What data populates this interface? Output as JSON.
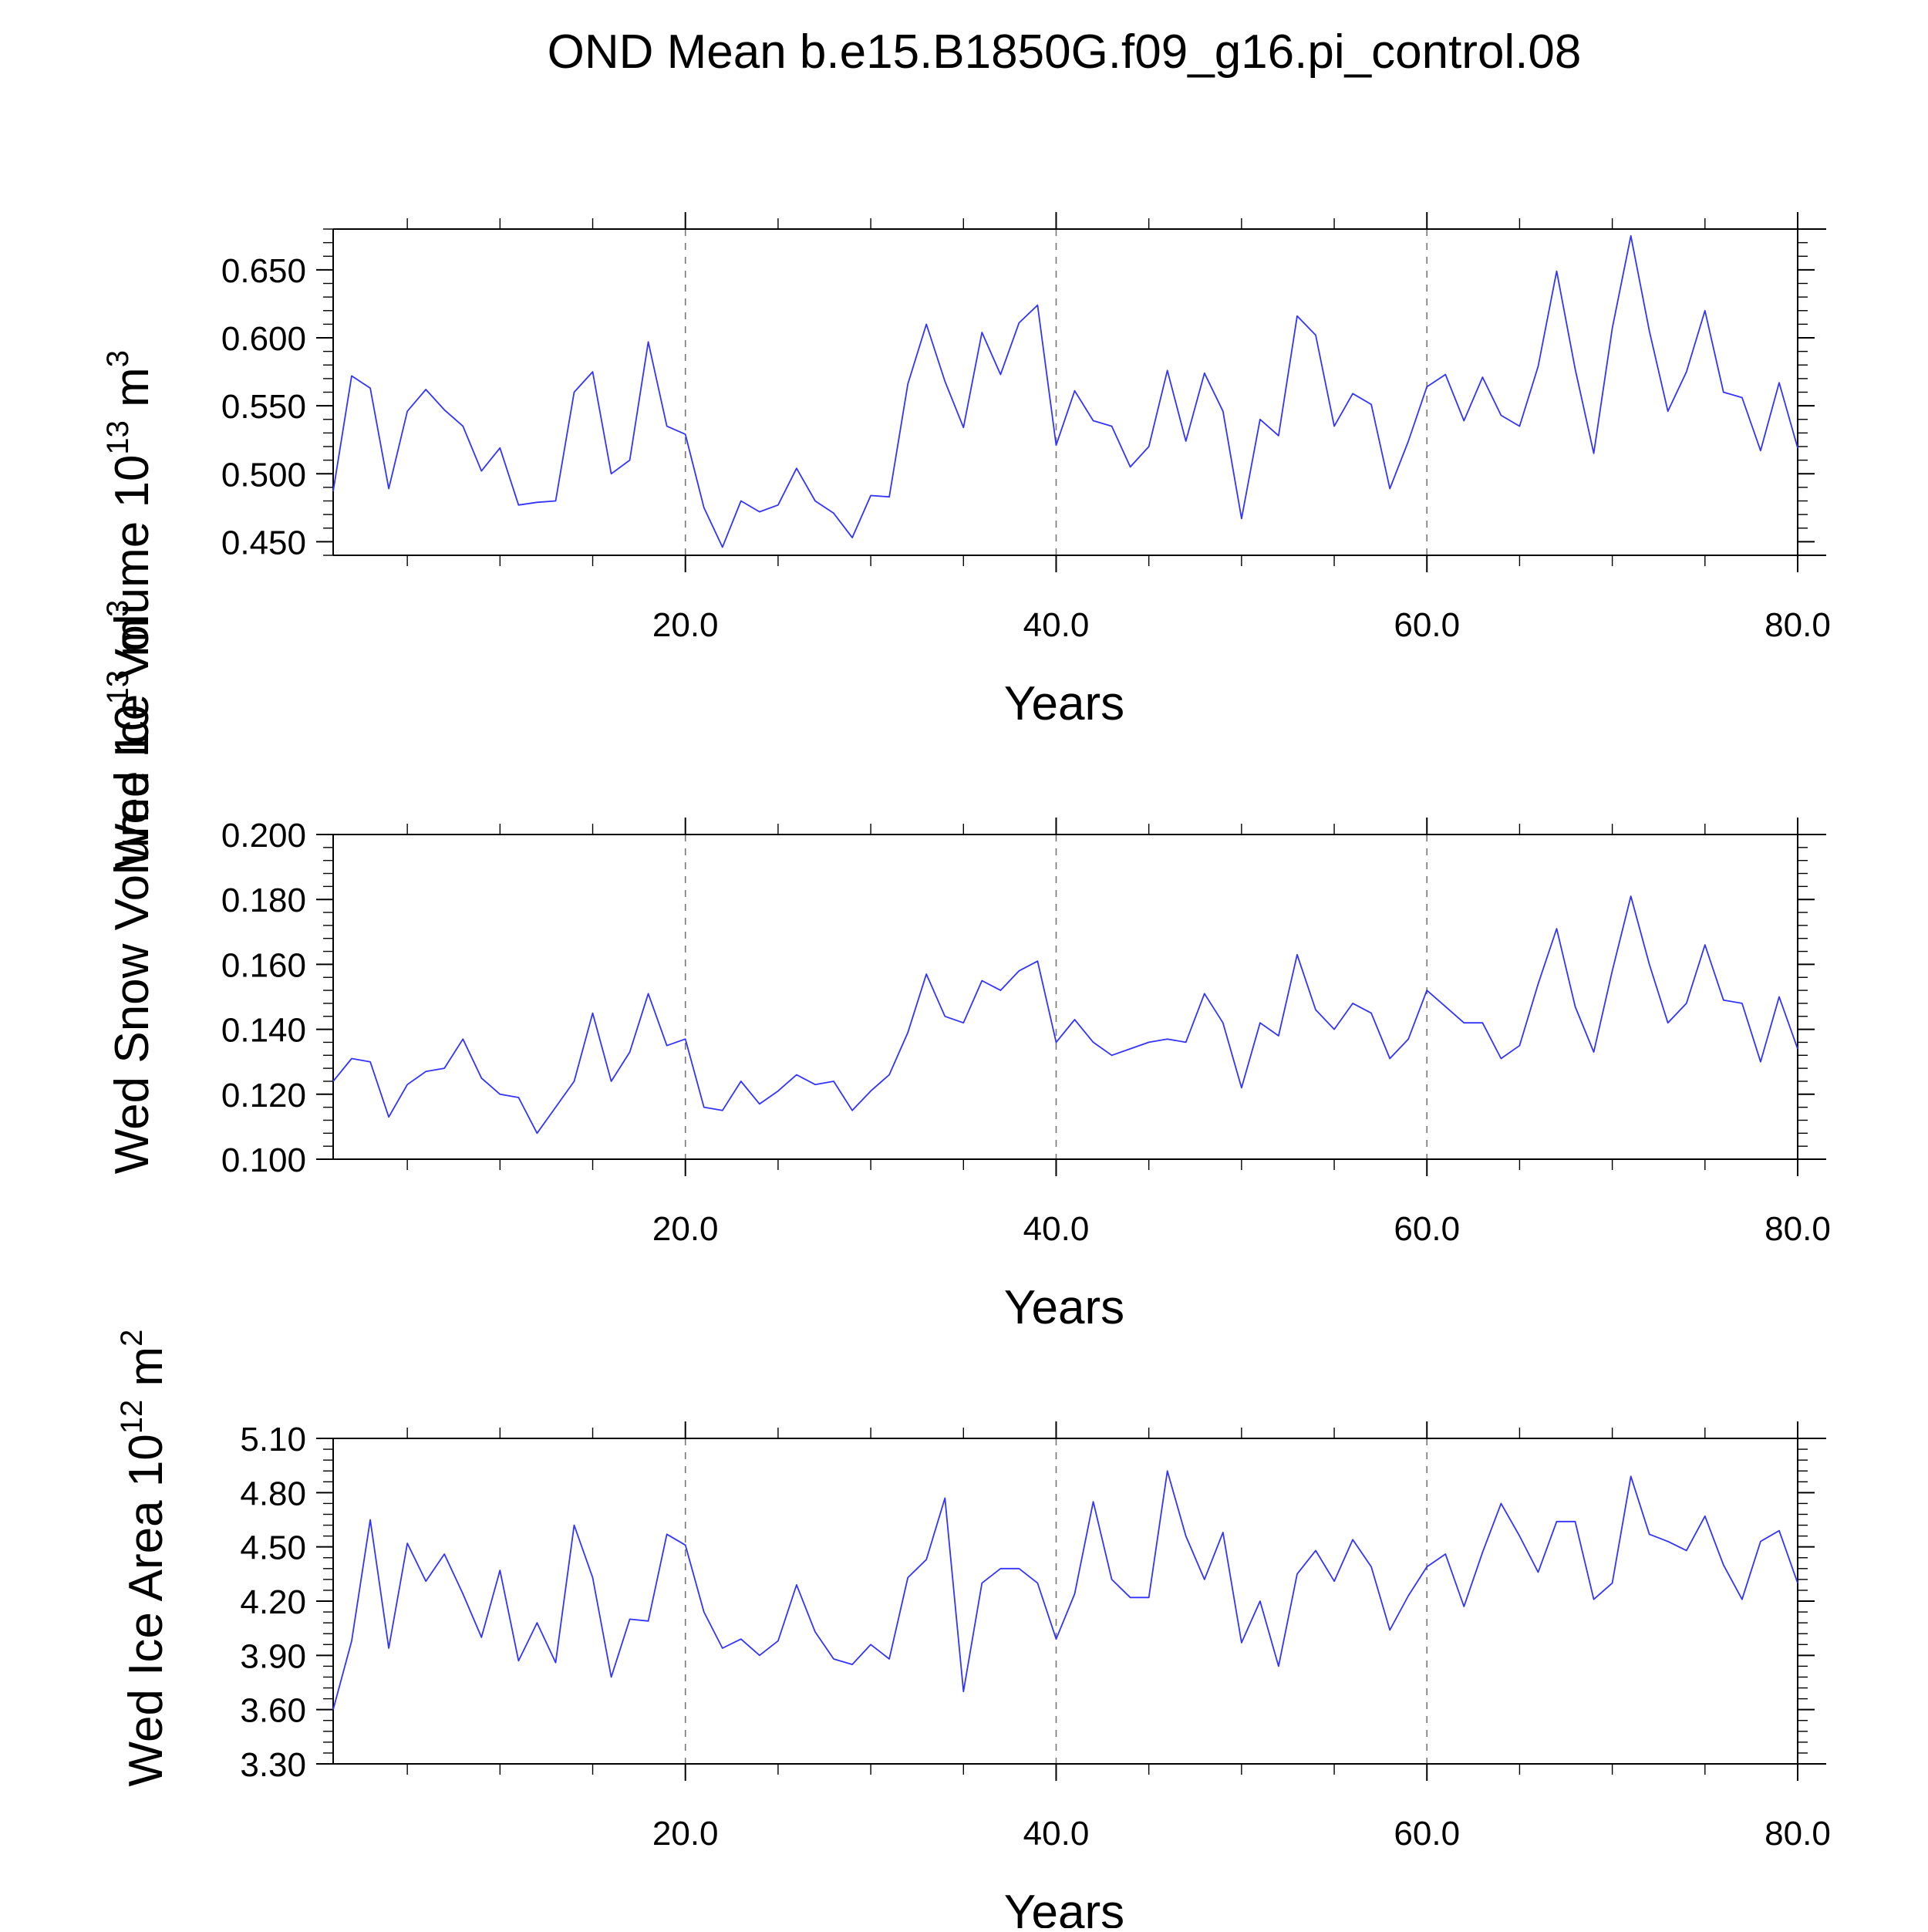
{
  "title": "OND Mean b.e15.B1850G.f09_g16.pi_control.08",
  "colors": {
    "series": "#3333ff",
    "axes": "#000000",
    "grid": "#888888"
  },
  "chart_data": [
    {
      "type": "line",
      "ylabel_main": "Wed Ice Volume 10",
      "ylabel_exp": "13",
      "ylabel_unit": " m",
      "ylabel_unit_exp": "3",
      "xlabel": "Years",
      "xlim": [
        1,
        80
      ],
      "ylim": [
        0.44,
        0.68
      ],
      "x_ticks": [
        "20.0",
        "40.0",
        "60.0",
        "80.0"
      ],
      "y_ticks": [
        "0.450",
        "0.500",
        "0.550",
        "0.600",
        "0.650"
      ],
      "grid": "vertical dashed at x = 20, 40, 60",
      "series": [
        {
          "values": [
            0.487,
            0.572,
            0.563,
            0.489,
            0.546,
            0.562,
            0.547,
            0.535,
            0.502,
            0.519,
            0.477,
            0.479,
            0.48,
            0.56,
            0.575,
            0.5,
            0.51,
            0.597,
            0.535,
            0.529,
            0.475,
            0.446,
            0.48,
            0.472,
            0.477,
            0.504,
            0.48,
            0.471,
            0.453,
            0.484,
            0.483,
            0.566,
            0.61,
            0.568,
            0.534,
            0.604,
            0.573,
            0.611,
            0.624,
            0.521,
            0.561,
            0.539,
            0.535,
            0.505,
            0.52,
            0.576,
            0.524,
            0.574,
            0.546,
            0.467,
            0.54,
            0.528,
            0.616,
            0.602,
            0.535,
            0.559,
            0.551,
            0.489,
            0.524,
            0.564,
            0.573,
            0.539,
            0.571,
            0.543,
            0.535,
            0.579,
            0.649,
            0.577,
            0.515,
            0.607,
            0.675,
            0.605,
            0.546,
            0.575,
            0.62,
            0.56,
            0.556,
            0.517,
            0.567,
            0.519
          ]
        }
      ]
    },
    {
      "type": "line",
      "ylabel_main": "Wed Snow Volume 10",
      "ylabel_exp": "13",
      "ylabel_unit": " m",
      "ylabel_unit_exp": "3",
      "xlabel": "Years",
      "xlim": [
        1,
        80
      ],
      "ylim": [
        0.1,
        0.2
      ],
      "x_ticks": [
        "20.0",
        "40.0",
        "60.0",
        "80.0"
      ],
      "y_ticks": [
        "0.100",
        "0.120",
        "0.140",
        "0.160",
        "0.180",
        "0.200"
      ],
      "grid": "vertical dashed at x = 20, 40, 60",
      "series": [
        {
          "values": [
            0.124,
            0.131,
            0.13,
            0.113,
            0.123,
            0.127,
            0.128,
            0.137,
            0.125,
            0.12,
            0.119,
            0.108,
            0.116,
            0.124,
            0.145,
            0.124,
            0.133,
            0.151,
            0.135,
            0.137,
            0.116,
            0.115,
            0.124,
            0.117,
            0.121,
            0.126,
            0.123,
            0.124,
            0.115,
            0.121,
            0.126,
            0.139,
            0.157,
            0.144,
            0.142,
            0.155,
            0.152,
            0.158,
            0.161,
            0.136,
            0.143,
            0.136,
            0.132,
            0.134,
            0.136,
            0.137,
            0.136,
            0.151,
            0.142,
            0.122,
            0.142,
            0.138,
            0.163,
            0.146,
            0.14,
            0.148,
            0.145,
            0.131,
            0.137,
            0.152,
            0.147,
            0.142,
            0.142,
            0.131,
            0.135,
            0.154,
            0.171,
            0.147,
            0.133,
            0.158,
            0.181,
            0.16,
            0.142,
            0.148,
            0.166,
            0.149,
            0.148,
            0.13,
            0.15,
            0.134
          ]
        }
      ]
    },
    {
      "type": "line",
      "ylabel_main": "Wed Ice Area 10",
      "ylabel_exp": "12",
      "ylabel_unit": " m",
      "ylabel_unit_exp": "2",
      "xlabel": "Years",
      "xlim": [
        1,
        80
      ],
      "ylim": [
        3.3,
        5.1
      ],
      "x_ticks": [
        "20.0",
        "40.0",
        "60.0",
        "80.0"
      ],
      "y_ticks": [
        "3.30",
        "3.60",
        "3.90",
        "4.20",
        "4.50",
        "4.80",
        "5.10"
      ],
      "grid": "vertical dashed at x = 20, 40, 60",
      "series": [
        {
          "values": [
            3.6,
            3.98,
            4.65,
            3.94,
            4.52,
            4.31,
            4.46,
            4.24,
            4.0,
            4.37,
            3.87,
            4.08,
            3.86,
            4.62,
            4.33,
            3.78,
            4.1,
            4.09,
            4.57,
            4.51,
            4.14,
            3.94,
            3.99,
            3.9,
            3.98,
            4.29,
            4.03,
            3.88,
            3.85,
            3.96,
            3.88,
            4.33,
            4.43,
            4.77,
            3.7,
            4.3,
            4.38,
            4.38,
            4.3,
            3.99,
            4.24,
            4.75,
            4.32,
            4.22,
            4.22,
            4.92,
            4.56,
            4.32,
            4.58,
            3.97,
            4.2,
            3.84,
            4.35,
            4.48,
            4.31,
            4.54,
            4.39,
            4.04,
            4.23,
            4.39,
            4.46,
            4.17,
            4.47,
            4.74,
            4.56,
            4.36,
            4.64,
            4.64,
            4.21,
            4.3,
            4.89,
            4.57,
            4.53,
            4.48,
            4.67,
            4.4,
            4.21,
            4.53,
            4.59,
            4.3
          ]
        }
      ]
    }
  ]
}
